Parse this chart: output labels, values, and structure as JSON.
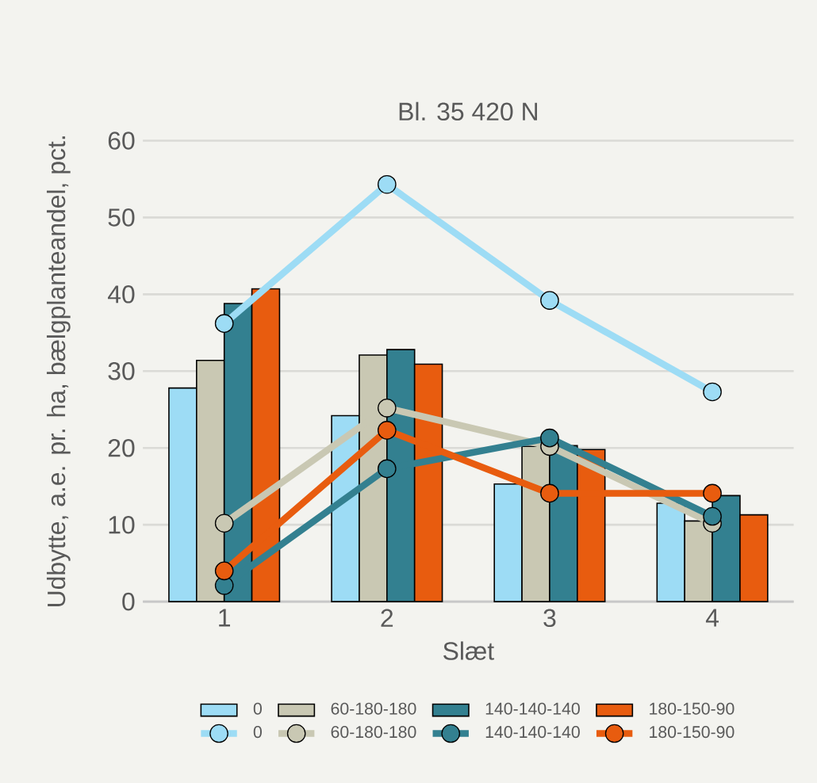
{
  "chart_data": {
    "type": "bar",
    "title": "Bl. 35 420 N",
    "xlabel": "Slæt",
    "ylabel": "Udbytte, a.e. pr. ha, bælgplanteandel, pct.",
    "categories": [
      "1",
      "2",
      "3",
      "4"
    ],
    "series": [
      {
        "name": "0",
        "color": "#9ddcf5",
        "values": [
          27.8,
          24.2,
          15.3,
          12.8
        ]
      },
      {
        "name": "60-180-180",
        "color": "#c9c8b3",
        "values": [
          31.4,
          32.1,
          20.2,
          10.5
        ]
      },
      {
        "name": "140-140-140",
        "color": "#338090",
        "values": [
          38.8,
          32.8,
          20.3,
          13.8
        ]
      },
      {
        "name": "180-150-90",
        "color": "#e85c0f",
        "values": [
          40.7,
          30.9,
          19.8,
          11.3
        ]
      },
      {
        "name": "0",
        "type": "line",
        "color": "#9ddcf5",
        "values": [
          36.2,
          54.3,
          39.2,
          27.3
        ]
      },
      {
        "name": "60-180-180",
        "type": "line",
        "color": "#c9c8b3",
        "values": [
          10.2,
          25.2,
          20.2,
          10.2
        ]
      },
      {
        "name": "140-140-140",
        "type": "line",
        "color": "#338090",
        "values": [
          2.1,
          17.3,
          21.3,
          11.1
        ]
      },
      {
        "name": "180-150-90",
        "type": "line",
        "color": "#e85c0f",
        "values": [
          4.0,
          22.3,
          14.1,
          14.1
        ]
      }
    ],
    "ylim": [
      0,
      60
    ],
    "yticks": [
      0,
      10,
      20,
      30,
      40,
      50,
      60
    ],
    "grid": "y",
    "legend": "bottom",
    "marker": "circle"
  }
}
